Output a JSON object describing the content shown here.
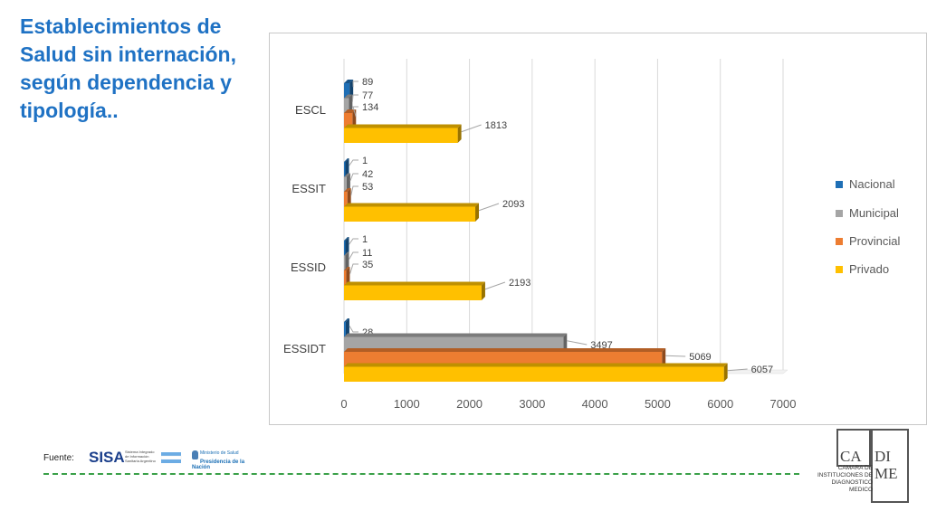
{
  "title": "Establecimientos de Salud sin internación, según dependencia y tipología..",
  "footer": {
    "label": "Fuente:",
    "sisa_word": "SISA",
    "sisa_subtitle": "Sistema Integrado de Información Sanitaria Argentino",
    "ministry_line1": "Ministerio de Salud",
    "ministry_line2": "Presidencia de la Nación"
  },
  "logo": {
    "ca": "CA",
    "di": "DI",
    "me": "ME",
    "subtitle_lines": [
      "CAMARA DE",
      "INSTITUCIONES DE",
      "DIAGNOSTICO",
      "MEDICO"
    ]
  },
  "colors": {
    "title": "#1f72c4",
    "Nacional": "#1f6fb5",
    "Municipal": "#a5a5a5",
    "Provincial": "#ed7d31",
    "Privado": "#ffc000",
    "dashed_line": "#3aa048"
  },
  "chart_data": {
    "type": "bar",
    "orientation": "horizontal",
    "categories": [
      "ESCL",
      "ESSIT",
      "ESSID",
      "ESSIDT"
    ],
    "series": [
      {
        "name": "Nacional",
        "values": [
          89,
          1,
          1,
          28
        ]
      },
      {
        "name": "Municipal",
        "values": [
          77,
          42,
          11,
          3497
        ]
      },
      {
        "name": "Provincial",
        "values": [
          134,
          53,
          35,
          5069
        ]
      },
      {
        "name": "Privado",
        "values": [
          1813,
          2093,
          2193,
          6057
        ]
      }
    ],
    "xlim": [
      0,
      7000
    ],
    "xticks": [
      0,
      1000,
      2000,
      3000,
      4000,
      5000,
      6000,
      7000
    ],
    "grid": true,
    "legend": "right",
    "data_labels": true
  }
}
